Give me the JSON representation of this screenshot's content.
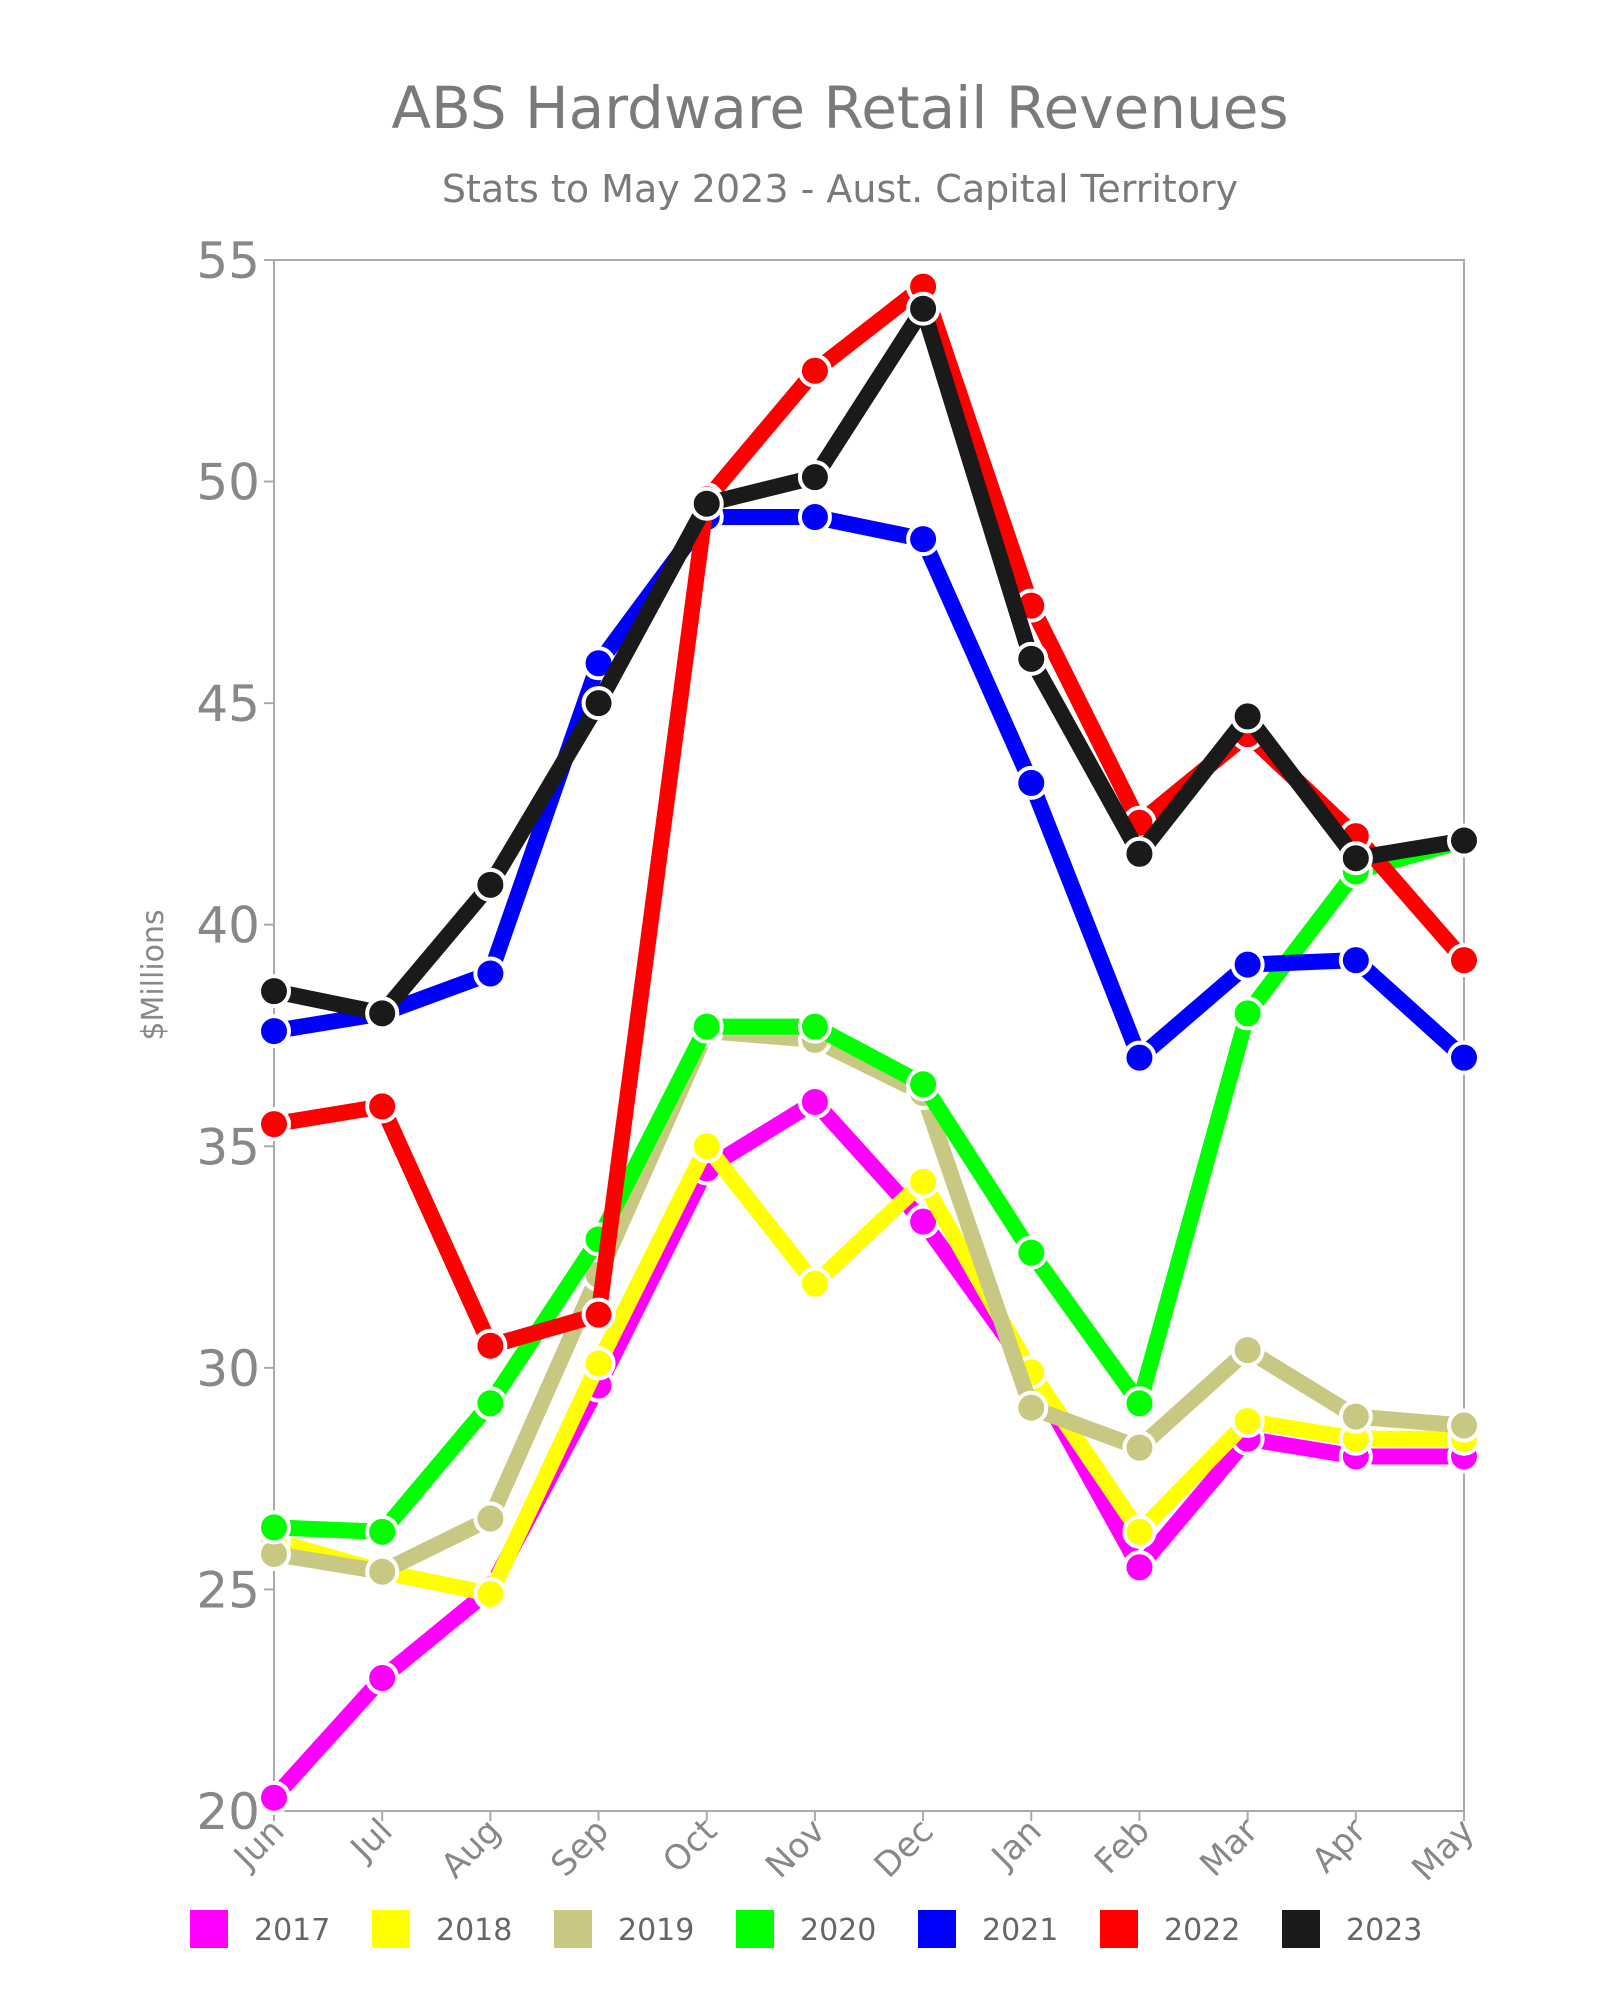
{
  "chart_data": {
    "type": "line",
    "title": "ABS Hardware Retail Revenues",
    "subtitle": "Stats to May 2023 - Aust. Capital Territory",
    "xlabel": "",
    "ylabel": "$Millions",
    "ylim": [
      20,
      55
    ],
    "yticks": [
      "20",
      "25",
      "30",
      "35",
      "40",
      "45",
      "50",
      "55"
    ],
    "categories": [
      "Jun",
      "Jul",
      "Aug",
      "Sep",
      "Oct",
      "Nov",
      "Dec",
      "Jan",
      "Feb",
      "Mar",
      "Apr",
      "May"
    ],
    "legend_position": "bottom",
    "grid": false,
    "series": [
      {
        "name": "2017",
        "color": "#ff00ff",
        "values": [
          20.3,
          23.0,
          25.0,
          29.6,
          34.5,
          36.0,
          33.3,
          29.9,
          25.5,
          28.4,
          28.0,
          28.0
        ]
      },
      {
        "name": "2018",
        "color": "#ffff00",
        "values": [
          26.1,
          25.4,
          24.9,
          30.1,
          35.0,
          31.9,
          34.2,
          29.9,
          26.3,
          28.8,
          28.4,
          28.4
        ]
      },
      {
        "name": "2019",
        "color": "#c8c882",
        "values": [
          25.8,
          25.4,
          26.6,
          32.1,
          37.6,
          37.4,
          36.2,
          29.1,
          28.2,
          30.4,
          28.9,
          28.7
        ]
      },
      {
        "name": "2020",
        "color": "#00ff00",
        "values": [
          26.4,
          26.3,
          29.2,
          32.9,
          37.7,
          37.7,
          36.4,
          32.6,
          29.2,
          38.0,
          41.2,
          41.9
        ]
      },
      {
        "name": "2021",
        "color": "#0000ff",
        "values": [
          37.6,
          38.0,
          38.9,
          45.9,
          49.2,
          49.2,
          48.7,
          43.2,
          37.0,
          39.1,
          39.2,
          37.0
        ]
      },
      {
        "name": "2022",
        "color": "#ff0000",
        "values": [
          35.5,
          35.9,
          30.5,
          31.2,
          49.6,
          52.5,
          54.4,
          47.2,
          42.3,
          44.3,
          42.0,
          39.2
        ]
      },
      {
        "name": "2023",
        "color": "#1a1a1a",
        "values": [
          38.5,
          38.0,
          40.9,
          45.0,
          49.5,
          50.1,
          53.9,
          46.0,
          41.6,
          44.7,
          41.5,
          41.9
        ]
      }
    ]
  }
}
